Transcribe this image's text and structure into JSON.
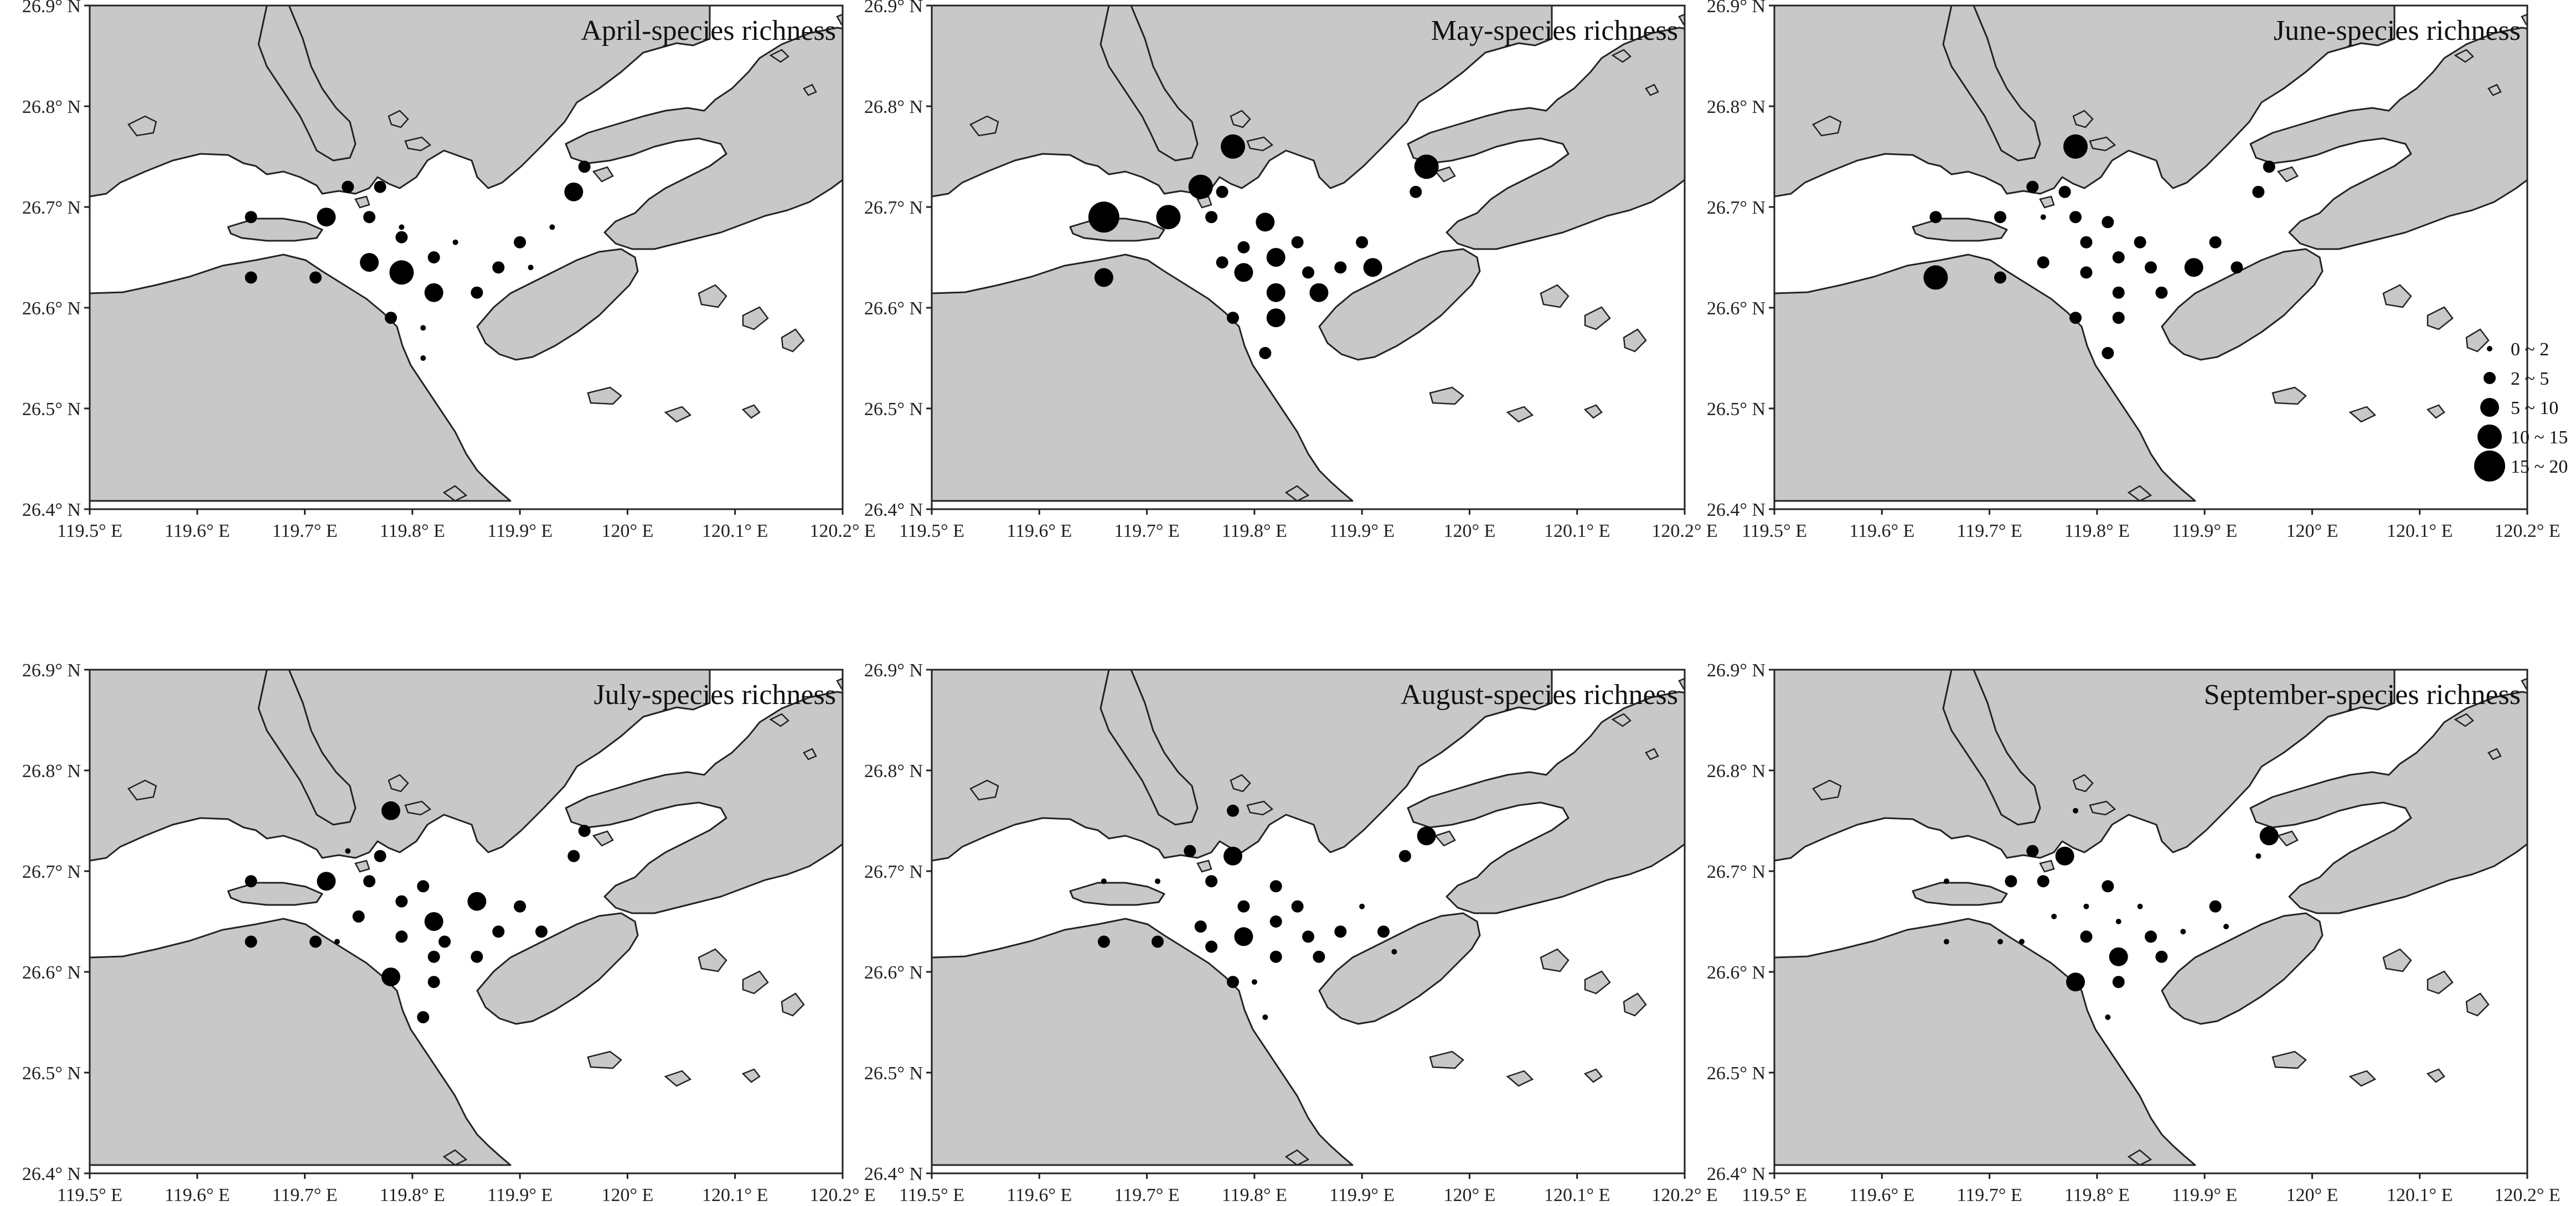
{
  "figure": {
    "x_ticks": [
      "119.5° E",
      "119.6° E",
      "119.7° E",
      "119.8° E",
      "119.9° E",
      "120° E",
      "120.1° E",
      "120.2° E"
    ],
    "y_ticks": [
      "26.9° N",
      "26.8° N",
      "26.7° N",
      "26.6° N",
      "26.5° N",
      "26.4° N"
    ],
    "land_color": "#c8c8c8",
    "sea_color": "#ffffff",
    "marker_color": "#000000"
  },
  "legend": {
    "items": [
      {
        "label": "0 ~ 2",
        "size_class": 1
      },
      {
        "label": "2 ~ 5",
        "size_class": 2
      },
      {
        "label": "5 ~ 10",
        "size_class": 3
      },
      {
        "label": "10 ~ 15",
        "size_class": 4
      },
      {
        "label": "15 ~ 20",
        "size_class": 5
      }
    ]
  },
  "chart_data": [
    {
      "type": "scatter",
      "title": "April-species richness",
      "xlim": [
        119.5,
        120.2
      ],
      "ylim": [
        26.4,
        26.9
      ],
      "points": [
        {
          "lon": 119.65,
          "lat": 26.69,
          "c": 2
        },
        {
          "lon": 119.72,
          "lat": 26.69,
          "c": 3
        },
        {
          "lon": 119.74,
          "lat": 26.72,
          "c": 2
        },
        {
          "lon": 119.77,
          "lat": 26.72,
          "c": 2
        },
        {
          "lon": 119.76,
          "lat": 26.69,
          "c": 2
        },
        {
          "lon": 119.79,
          "lat": 26.68,
          "c": 1
        },
        {
          "lon": 119.65,
          "lat": 26.63,
          "c": 2
        },
        {
          "lon": 119.71,
          "lat": 26.63,
          "c": 2
        },
        {
          "lon": 119.76,
          "lat": 26.645,
          "c": 3
        },
        {
          "lon": 119.79,
          "lat": 26.67,
          "c": 2
        },
        {
          "lon": 119.82,
          "lat": 26.65,
          "c": 2
        },
        {
          "lon": 119.79,
          "lat": 26.635,
          "c": 4
        },
        {
          "lon": 119.82,
          "lat": 26.615,
          "c": 3
        },
        {
          "lon": 119.84,
          "lat": 26.665,
          "c": 1
        },
        {
          "lon": 119.86,
          "lat": 26.615,
          "c": 2
        },
        {
          "lon": 119.78,
          "lat": 26.59,
          "c": 2
        },
        {
          "lon": 119.81,
          "lat": 26.58,
          "c": 1
        },
        {
          "lon": 119.81,
          "lat": 26.55,
          "c": 1
        },
        {
          "lon": 119.9,
          "lat": 26.665,
          "c": 2
        },
        {
          "lon": 119.88,
          "lat": 26.64,
          "c": 2
        },
        {
          "lon": 119.95,
          "lat": 26.715,
          "c": 3
        },
        {
          "lon": 119.96,
          "lat": 26.74,
          "c": 2
        },
        {
          "lon": 119.91,
          "lat": 26.64,
          "c": 1
        },
        {
          "lon": 119.93,
          "lat": 26.68,
          "c": 1
        }
      ]
    },
    {
      "type": "scatter",
      "title": "May-species richness",
      "xlim": [
        119.5,
        120.2
      ],
      "ylim": [
        26.4,
        26.9
      ],
      "points": [
        {
          "lon": 119.66,
          "lat": 26.69,
          "c": 5
        },
        {
          "lon": 119.66,
          "lat": 26.63,
          "c": 3
        },
        {
          "lon": 119.72,
          "lat": 26.69,
          "c": 4
        },
        {
          "lon": 119.75,
          "lat": 26.72,
          "c": 4
        },
        {
          "lon": 119.77,
          "lat": 26.715,
          "c": 2
        },
        {
          "lon": 119.78,
          "lat": 26.76,
          "c": 4
        },
        {
          "lon": 119.76,
          "lat": 26.69,
          "c": 2
        },
        {
          "lon": 119.77,
          "lat": 26.645,
          "c": 2
        },
        {
          "lon": 119.79,
          "lat": 26.66,
          "c": 2
        },
        {
          "lon": 119.81,
          "lat": 26.685,
          "c": 3
        },
        {
          "lon": 119.82,
          "lat": 26.65,
          "c": 3
        },
        {
          "lon": 119.79,
          "lat": 26.635,
          "c": 3
        },
        {
          "lon": 119.84,
          "lat": 26.665,
          "c": 2
        },
        {
          "lon": 119.82,
          "lat": 26.615,
          "c": 3
        },
        {
          "lon": 119.85,
          "lat": 26.635,
          "c": 2
        },
        {
          "lon": 119.86,
          "lat": 26.615,
          "c": 3
        },
        {
          "lon": 119.78,
          "lat": 26.59,
          "c": 2
        },
        {
          "lon": 119.82,
          "lat": 26.59,
          "c": 3
        },
        {
          "lon": 119.81,
          "lat": 26.555,
          "c": 2
        },
        {
          "lon": 119.88,
          "lat": 26.64,
          "c": 2
        },
        {
          "lon": 119.9,
          "lat": 26.665,
          "c": 2
        },
        {
          "lon": 119.91,
          "lat": 26.64,
          "c": 3
        },
        {
          "lon": 119.95,
          "lat": 26.715,
          "c": 2
        },
        {
          "lon": 119.96,
          "lat": 26.74,
          "c": 4
        }
      ]
    },
    {
      "type": "scatter",
      "title": "June-species richness",
      "xlim": [
        119.5,
        120.2
      ],
      "ylim": [
        26.4,
        26.9
      ],
      "points": [
        {
          "lon": 119.65,
          "lat": 26.69,
          "c": 2
        },
        {
          "lon": 119.65,
          "lat": 26.63,
          "c": 4
        },
        {
          "lon": 119.71,
          "lat": 26.69,
          "c": 2
        },
        {
          "lon": 119.71,
          "lat": 26.63,
          "c": 2
        },
        {
          "lon": 119.74,
          "lat": 26.72,
          "c": 2
        },
        {
          "lon": 119.78,
          "lat": 26.76,
          "c": 4
        },
        {
          "lon": 119.77,
          "lat": 26.715,
          "c": 2
        },
        {
          "lon": 119.75,
          "lat": 26.69,
          "c": 1
        },
        {
          "lon": 119.78,
          "lat": 26.69,
          "c": 2
        },
        {
          "lon": 119.75,
          "lat": 26.645,
          "c": 2
        },
        {
          "lon": 119.79,
          "lat": 26.665,
          "c": 2
        },
        {
          "lon": 119.81,
          "lat": 26.685,
          "c": 2
        },
        {
          "lon": 119.82,
          "lat": 26.65,
          "c": 2
        },
        {
          "lon": 119.79,
          "lat": 26.635,
          "c": 2
        },
        {
          "lon": 119.84,
          "lat": 26.665,
          "c": 2
        },
        {
          "lon": 119.85,
          "lat": 26.64,
          "c": 2
        },
        {
          "lon": 119.82,
          "lat": 26.615,
          "c": 2
        },
        {
          "lon": 119.86,
          "lat": 26.615,
          "c": 2
        },
        {
          "lon": 119.89,
          "lat": 26.64,
          "c": 3
        },
        {
          "lon": 119.91,
          "lat": 26.665,
          "c": 2
        },
        {
          "lon": 119.93,
          "lat": 26.64,
          "c": 2
        },
        {
          "lon": 119.78,
          "lat": 26.59,
          "c": 2
        },
        {
          "lon": 119.82,
          "lat": 26.59,
          "c": 2
        },
        {
          "lon": 119.81,
          "lat": 26.555,
          "c": 2
        },
        {
          "lon": 119.95,
          "lat": 26.715,
          "c": 2
        },
        {
          "lon": 119.96,
          "lat": 26.74,
          "c": 2
        }
      ]
    },
    {
      "type": "scatter",
      "title": "July-species richness",
      "xlim": [
        119.5,
        120.2
      ],
      "ylim": [
        26.4,
        26.9
      ],
      "points": [
        {
          "lon": 119.65,
          "lat": 26.69,
          "c": 2
        },
        {
          "lon": 119.65,
          "lat": 26.63,
          "c": 2
        },
        {
          "lon": 119.72,
          "lat": 26.69,
          "c": 3
        },
        {
          "lon": 119.71,
          "lat": 26.63,
          "c": 2
        },
        {
          "lon": 119.74,
          "lat": 26.72,
          "c": 1
        },
        {
          "lon": 119.78,
          "lat": 26.76,
          "c": 3
        },
        {
          "lon": 119.77,
          "lat": 26.715,
          "c": 2
        },
        {
          "lon": 119.73,
          "lat": 26.63,
          "c": 1
        },
        {
          "lon": 119.76,
          "lat": 26.69,
          "c": 2
        },
        {
          "lon": 119.75,
          "lat": 26.655,
          "c": 2
        },
        {
          "lon": 119.79,
          "lat": 26.67,
          "c": 2
        },
        {
          "lon": 119.81,
          "lat": 26.685,
          "c": 2
        },
        {
          "lon": 119.82,
          "lat": 26.65,
          "c": 3
        },
        {
          "lon": 119.79,
          "lat": 26.635,
          "c": 2
        },
        {
          "lon": 119.83,
          "lat": 26.63,
          "c": 2
        },
        {
          "lon": 119.86,
          "lat": 26.67,
          "c": 3
        },
        {
          "lon": 119.82,
          "lat": 26.615,
          "c": 2
        },
        {
          "lon": 119.86,
          "lat": 26.615,
          "c": 2
        },
        {
          "lon": 119.88,
          "lat": 26.64,
          "c": 2
        },
        {
          "lon": 119.9,
          "lat": 26.665,
          "c": 2
        },
        {
          "lon": 119.92,
          "lat": 26.64,
          "c": 2
        },
        {
          "lon": 119.78,
          "lat": 26.595,
          "c": 3
        },
        {
          "lon": 119.82,
          "lat": 26.59,
          "c": 2
        },
        {
          "lon": 119.81,
          "lat": 26.555,
          "c": 2
        },
        {
          "lon": 119.95,
          "lat": 26.715,
          "c": 2
        },
        {
          "lon": 119.96,
          "lat": 26.74,
          "c": 2
        }
      ]
    },
    {
      "type": "scatter",
      "title": "August-species richness",
      "xlim": [
        119.5,
        120.2
      ],
      "ylim": [
        26.4,
        26.9
      ],
      "points": [
        {
          "lon": 119.66,
          "lat": 26.69,
          "c": 1
        },
        {
          "lon": 119.66,
          "lat": 26.63,
          "c": 2
        },
        {
          "lon": 119.71,
          "lat": 26.69,
          "c": 1
        },
        {
          "lon": 119.71,
          "lat": 26.63,
          "c": 2
        },
        {
          "lon": 119.74,
          "lat": 26.72,
          "c": 2
        },
        {
          "lon": 119.78,
          "lat": 26.76,
          "c": 2
        },
        {
          "lon": 119.78,
          "lat": 26.715,
          "c": 3
        },
        {
          "lon": 119.76,
          "lat": 26.69,
          "c": 2
        },
        {
          "lon": 119.75,
          "lat": 26.645,
          "c": 2
        },
        {
          "lon": 119.76,
          "lat": 26.625,
          "c": 2
        },
        {
          "lon": 119.79,
          "lat": 26.635,
          "c": 3
        },
        {
          "lon": 119.79,
          "lat": 26.665,
          "c": 2
        },
        {
          "lon": 119.82,
          "lat": 26.685,
          "c": 2
        },
        {
          "lon": 119.82,
          "lat": 26.65,
          "c": 2
        },
        {
          "lon": 119.84,
          "lat": 26.665,
          "c": 2
        },
        {
          "lon": 119.82,
          "lat": 26.615,
          "c": 2
        },
        {
          "lon": 119.85,
          "lat": 26.635,
          "c": 2
        },
        {
          "lon": 119.86,
          "lat": 26.615,
          "c": 2
        },
        {
          "lon": 119.88,
          "lat": 26.64,
          "c": 2
        },
        {
          "lon": 119.9,
          "lat": 26.665,
          "c": 1
        },
        {
          "lon": 119.92,
          "lat": 26.64,
          "c": 2
        },
        {
          "lon": 119.78,
          "lat": 26.59,
          "c": 2
        },
        {
          "lon": 119.8,
          "lat": 26.59,
          "c": 1
        },
        {
          "lon": 119.81,
          "lat": 26.555,
          "c": 1
        },
        {
          "lon": 119.94,
          "lat": 26.715,
          "c": 2
        },
        {
          "lon": 119.96,
          "lat": 26.735,
          "c": 3
        },
        {
          "lon": 119.93,
          "lat": 26.62,
          "c": 1
        }
      ]
    },
    {
      "type": "scatter",
      "title": "September-species richness",
      "xlim": [
        119.5,
        120.2
      ],
      "ylim": [
        26.4,
        26.9
      ],
      "points": [
        {
          "lon": 119.66,
          "lat": 26.69,
          "c": 1
        },
        {
          "lon": 119.66,
          "lat": 26.63,
          "c": 1
        },
        {
          "lon": 119.72,
          "lat": 26.69,
          "c": 2
        },
        {
          "lon": 119.71,
          "lat": 26.63,
          "c": 1
        },
        {
          "lon": 119.74,
          "lat": 26.72,
          "c": 2
        },
        {
          "lon": 119.78,
          "lat": 26.76,
          "c": 1
        },
        {
          "lon": 119.77,
          "lat": 26.715,
          "c": 3
        },
        {
          "lon": 119.75,
          "lat": 26.69,
          "c": 2
        },
        {
          "lon": 119.76,
          "lat": 26.655,
          "c": 1
        },
        {
          "lon": 119.79,
          "lat": 26.665,
          "c": 1
        },
        {
          "lon": 119.81,
          "lat": 26.685,
          "c": 2
        },
        {
          "lon": 119.79,
          "lat": 26.635,
          "c": 2
        },
        {
          "lon": 119.82,
          "lat": 26.65,
          "c": 1
        },
        {
          "lon": 119.84,
          "lat": 26.665,
          "c": 1
        },
        {
          "lon": 119.82,
          "lat": 26.615,
          "c": 3
        },
        {
          "lon": 119.85,
          "lat": 26.635,
          "c": 2
        },
        {
          "lon": 119.86,
          "lat": 26.615,
          "c": 2
        },
        {
          "lon": 119.88,
          "lat": 26.64,
          "c": 1
        },
        {
          "lon": 119.91,
          "lat": 26.665,
          "c": 2
        },
        {
          "lon": 119.92,
          "lat": 26.645,
          "c": 1
        },
        {
          "lon": 119.78,
          "lat": 26.59,
          "c": 3
        },
        {
          "lon": 119.82,
          "lat": 26.59,
          "c": 2
        },
        {
          "lon": 119.81,
          "lat": 26.555,
          "c": 1
        },
        {
          "lon": 119.95,
          "lat": 26.715,
          "c": 1
        },
        {
          "lon": 119.96,
          "lat": 26.735,
          "c": 3
        },
        {
          "lon": 119.73,
          "lat": 26.63,
          "c": 1
        }
      ]
    }
  ]
}
